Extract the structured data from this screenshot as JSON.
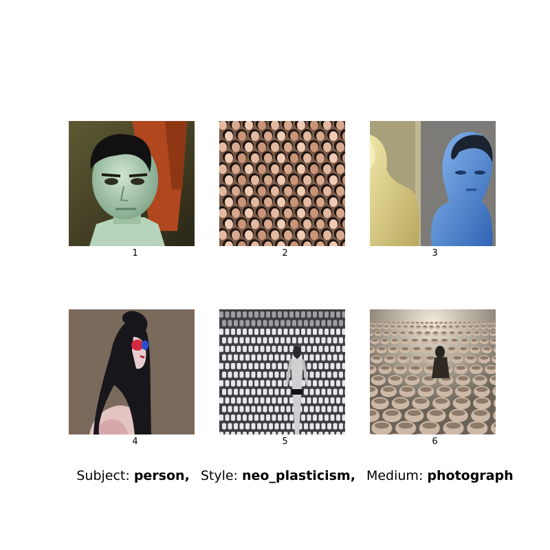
{
  "tiles": [
    {
      "number": "1",
      "image": "mannequin-head-portrait"
    },
    {
      "number": "2",
      "image": "crowd-of-doll-heads"
    },
    {
      "number": "3",
      "image": "yellow-and-blue-mannequins"
    },
    {
      "number": "4",
      "image": "woman-with-red-blue-glasses"
    },
    {
      "number": "5",
      "image": "mannequin-among-white-cups"
    },
    {
      "number": "6",
      "image": "field-of-ceramic-bowls"
    }
  ],
  "caption": {
    "subject_key": "Subject:",
    "subject_value": "person,",
    "style_key": "Style:",
    "style_value": "neo_plasticism,",
    "medium_key": "Medium:",
    "medium_value": "photograph"
  }
}
